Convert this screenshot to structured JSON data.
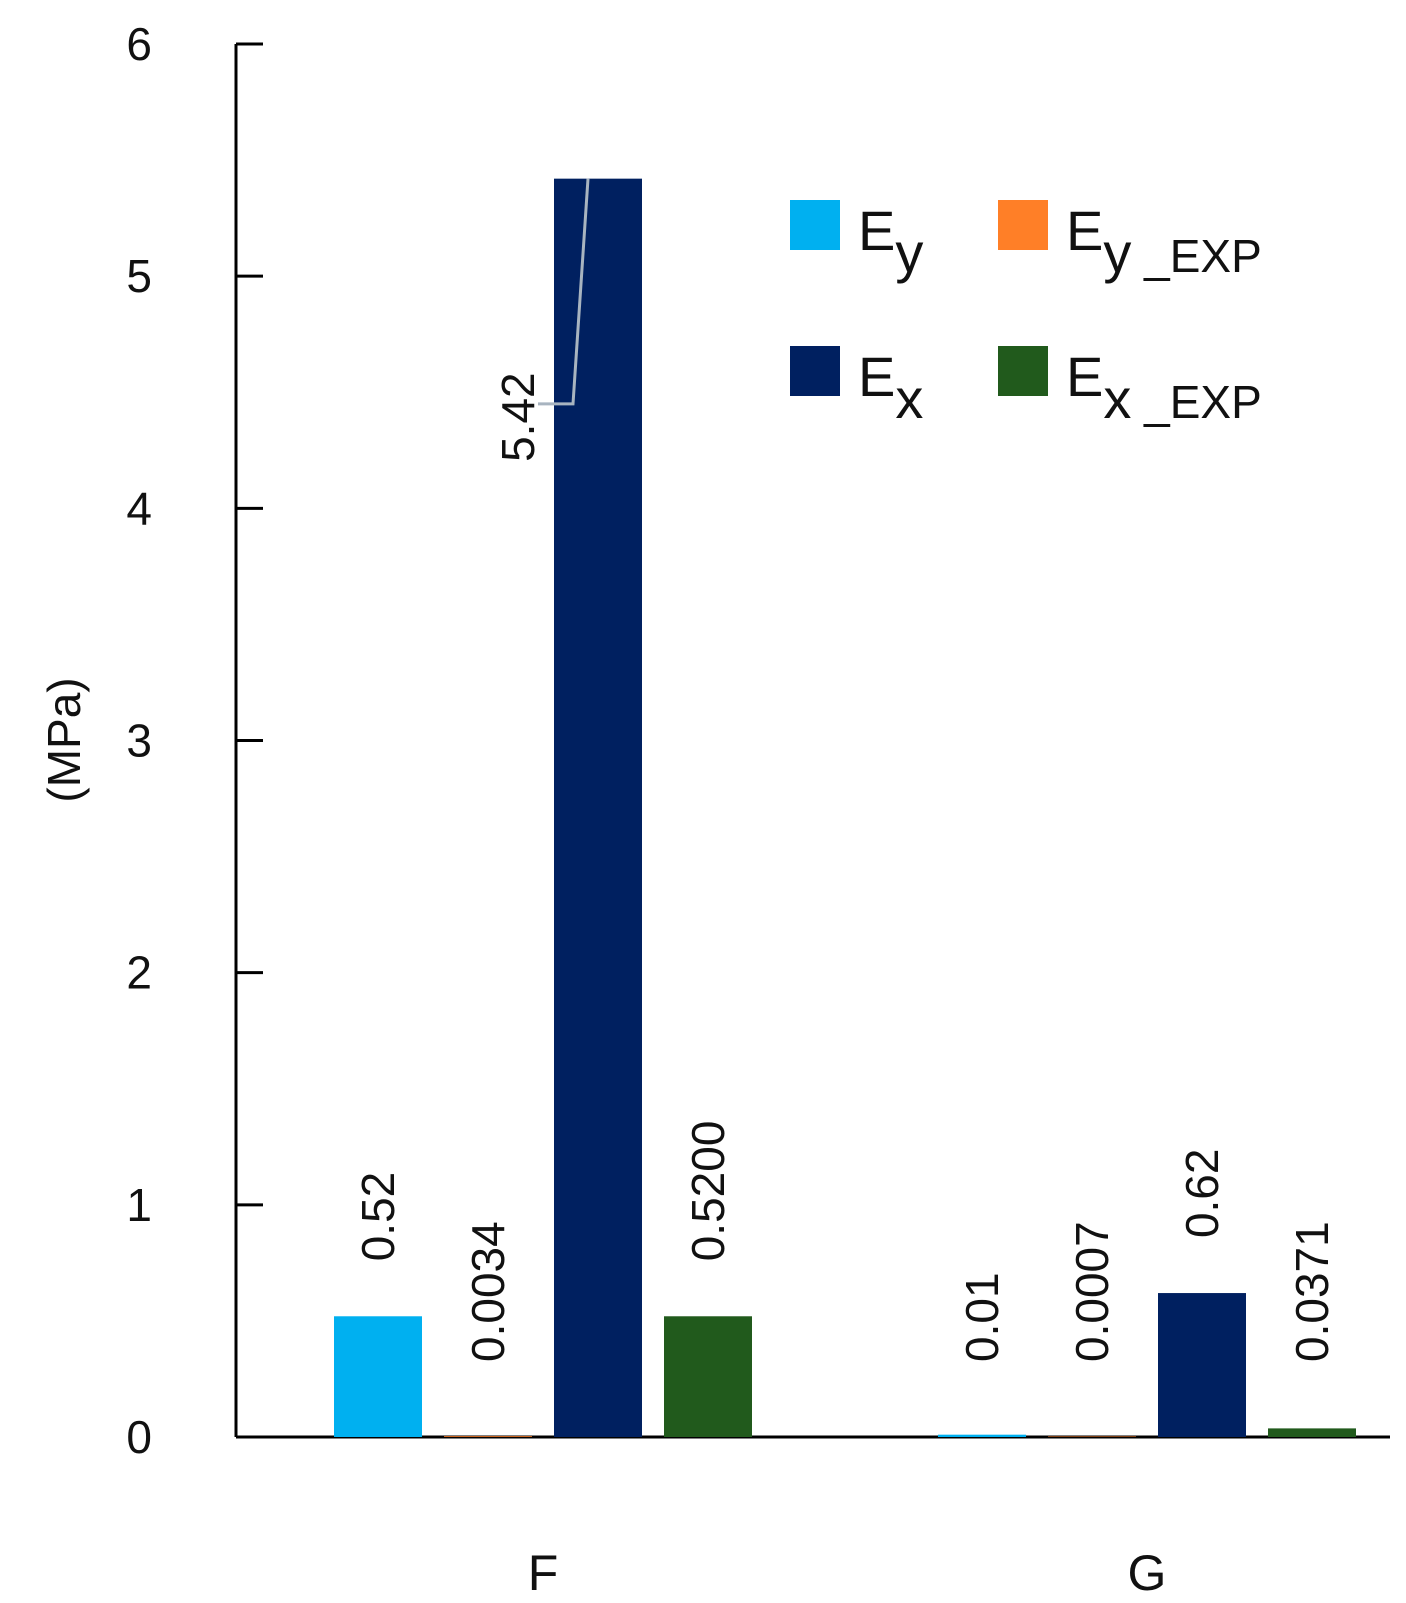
{
  "chart_data": {
    "type": "bar",
    "ylabel": "(MPa)",
    "ylim": [
      0,
      6
    ],
    "yticks": [
      0,
      1,
      2,
      3,
      4,
      5,
      6
    ],
    "categories": [
      "F",
      "G"
    ],
    "series": [
      {
        "name": "Ey",
        "main": "E",
        "sub": "y",
        "suffix": "",
        "color": "#00b0f0",
        "values": [
          0.52,
          0.01
        ],
        "labels": [
          "0.52",
          "0.01"
        ]
      },
      {
        "name": "Ey _EXP",
        "main": "E",
        "sub": "y",
        "suffix": " _EXP",
        "color": "#ff7f27",
        "values": [
          0.0034,
          0.0007
        ],
        "labels": [
          "0.0034",
          "0.0007"
        ]
      },
      {
        "name": "Ex",
        "main": "E",
        "sub": "x",
        "suffix": "",
        "color": "#002060",
        "values": [
          5.42,
          0.62
        ],
        "labels": [
          "5.42",
          "0.62"
        ]
      },
      {
        "name": "Ex _EXP",
        "main": "E",
        "sub": "x",
        "suffix": " _EXP",
        "color": "#215a1c",
        "values": [
          0.52,
          0.0371
        ],
        "labels": [
          "0.5200",
          "0.0371"
        ]
      }
    ],
    "legend_position": "top-right",
    "grid": false
  }
}
